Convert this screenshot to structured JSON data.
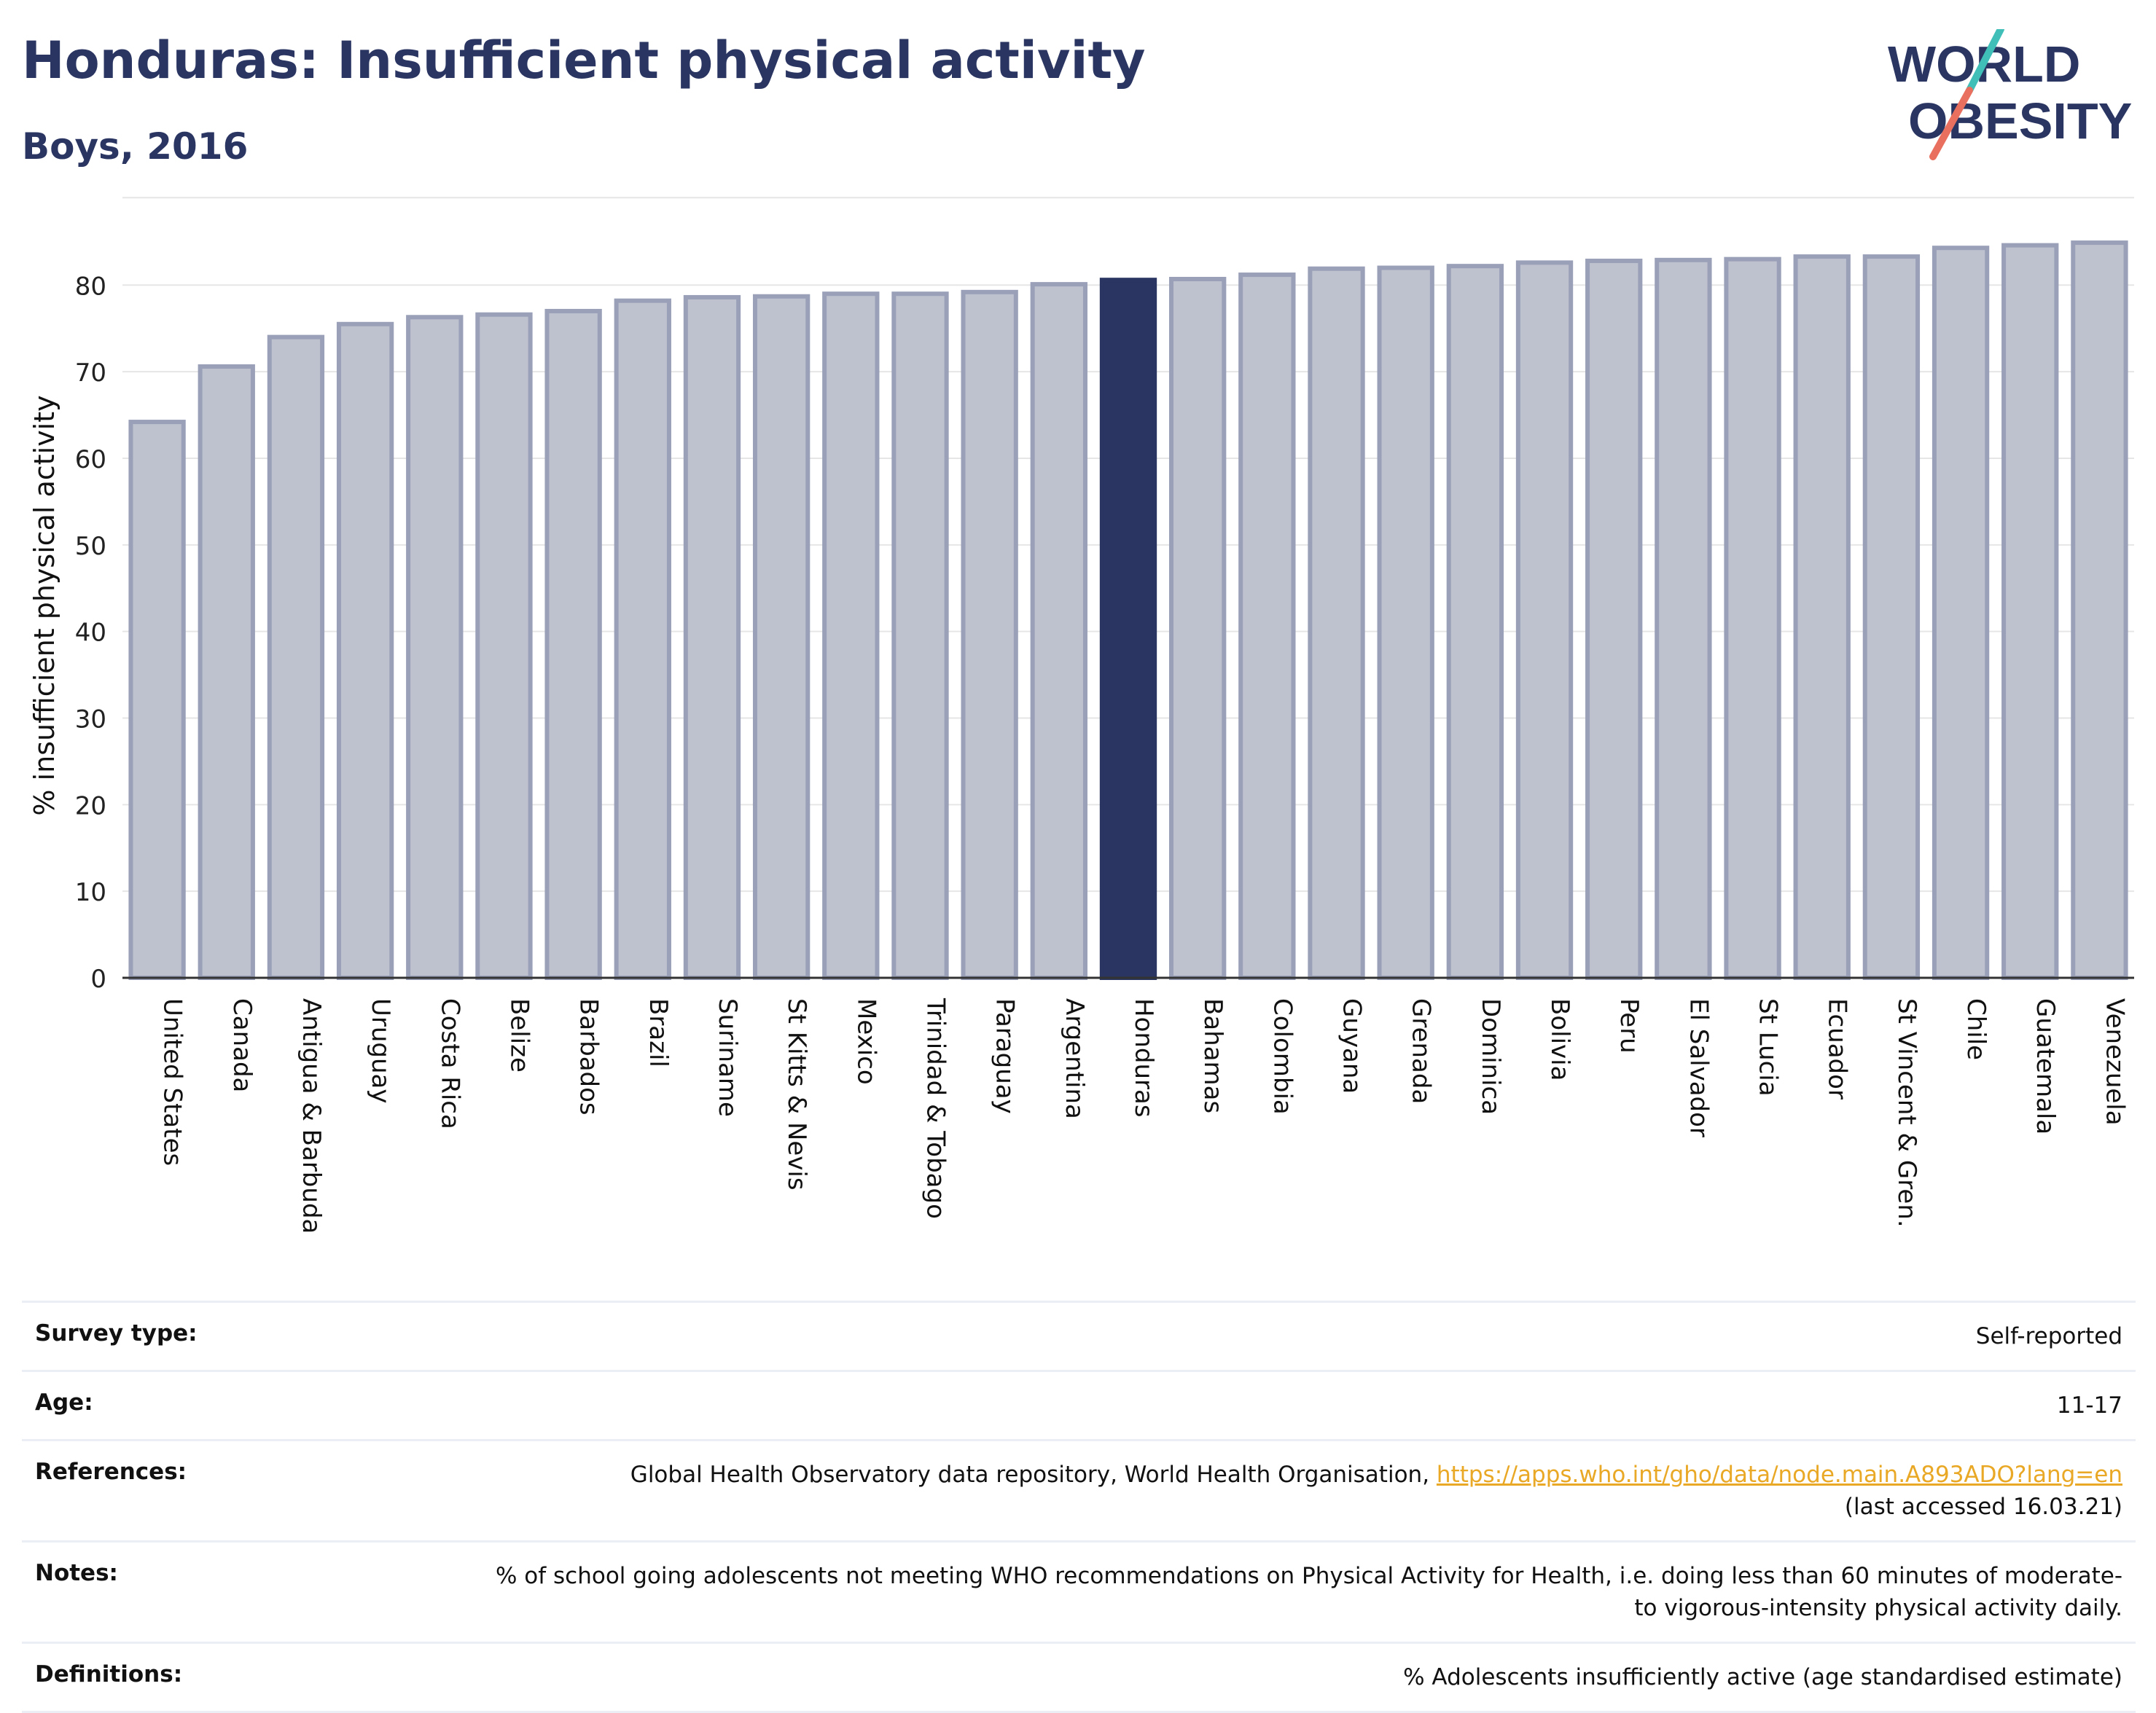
{
  "header": {
    "title": "Honduras: Insufficient physical activity",
    "subtitle": "Boys, 2016"
  },
  "logo": {
    "line1": "WORLD",
    "line2": "OBESITY"
  },
  "chart_data": {
    "type": "bar",
    "title": "Honduras: Insufficient physical activity",
    "subtitle": "Boys, 2016",
    "ylabel": "% insufficient physical activity",
    "xlabel": "",
    "ylim": [
      0,
      86
    ],
    "yticks": [
      0,
      10,
      20,
      30,
      40,
      50,
      60,
      70,
      80
    ],
    "grid": true,
    "highlight": "Honduras",
    "colors": {
      "bar": "#bec1ce",
      "bar_edge": "#9aa0b8",
      "highlight": "#2a3562",
      "axis": "#333333",
      "grid": "#e6e6e6"
    },
    "categories": [
      "United States",
      "Canada",
      "Antigua & Barbuda",
      "Uruguay",
      "Costa Rica",
      "Belize",
      "Barbados",
      "Brazil",
      "Suriname",
      "St Kitts & Nevis",
      "Mexico",
      "Trinidad & Tobago",
      "Paraguay",
      "Argentina",
      "Honduras",
      "Bahamas",
      "Colombia",
      "Guyana",
      "Grenada",
      "Dominica",
      "Bolivia",
      "Peru",
      "El Salvador",
      "St Lucia",
      "Ecuador",
      "St Vincent & Gren.",
      "Chile",
      "Guatemala",
      "Venezuela"
    ],
    "values": [
      64.2,
      70.6,
      74.0,
      75.5,
      76.3,
      76.6,
      77.0,
      78.2,
      78.6,
      78.7,
      79.0,
      79.0,
      79.2,
      80.1,
      80.6,
      80.7,
      81.2,
      81.9,
      82.0,
      82.2,
      82.6,
      82.8,
      82.9,
      83.0,
      83.3,
      83.3,
      84.3,
      84.6,
      84.9
    ]
  },
  "info": [
    {
      "label": "Survey type:",
      "value": "Self-reported"
    },
    {
      "label": "Age:",
      "value": "11-17"
    },
    {
      "label": "References:",
      "value": "Global Health Observatory data repository, World Health Organisation, ",
      "link": "https://apps.who.int/gho/data/node.main.A893ADO?lang=en",
      "after": "(last accessed 16.03.21)"
    },
    {
      "label": "Notes:",
      "value": "% of school going adolescents not meeting WHO recommendations on Physical Activity for Health, i.e. doing less than 60 minutes of moderate- to vigorous-intensity physical activity daily."
    },
    {
      "label": "Definitions:",
      "value": "% Adolescents insufficiently active (age standardised estimate)"
    }
  ]
}
